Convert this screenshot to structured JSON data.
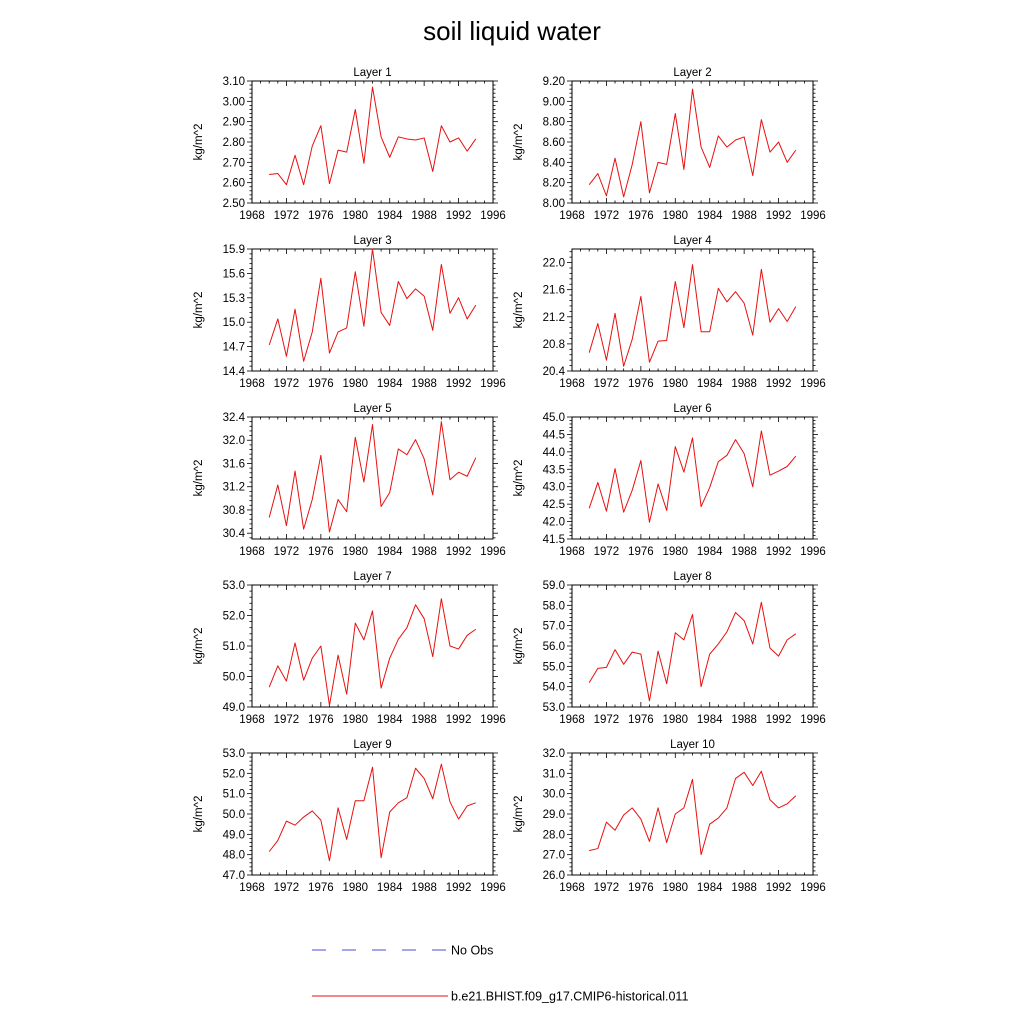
{
  "title": "soil liquid water",
  "legend": {
    "entries": [
      {
        "label": "No Obs",
        "color": "#4b4bd8",
        "style": "dashed"
      },
      {
        "label": "b.e21.BHIST.f09_g17.CMIP6-historical.011",
        "color": "#e81010",
        "style": "solid"
      }
    ]
  },
  "chart_data": [
    {
      "type": "line",
      "title": "Layer 1",
      "ylabel": "kg/m^2",
      "xlim": [
        1968,
        1996
      ],
      "xticks": [
        1968,
        1972,
        1976,
        1980,
        1984,
        1988,
        1992,
        1996
      ],
      "ylim": [
        2.5,
        3.1
      ],
      "yticks": [
        "2.50",
        "2.60",
        "2.70",
        "2.80",
        "2.90",
        "3.00",
        "3.10"
      ],
      "x": [
        1970,
        1971,
        1972,
        1973,
        1974,
        1975,
        1976,
        1977,
        1978,
        1979,
        1980,
        1981,
        1982,
        1983,
        1984,
        1985,
        1986,
        1987,
        1988,
        1989,
        1990,
        1991,
        1992,
        1993,
        1994
      ],
      "series": [
        {
          "name": "b.e21.BHIST.f09_g17.CMIP6-historical.011",
          "values": [
            2.64,
            2.645,
            2.59,
            2.735,
            2.59,
            2.78,
            2.88,
            2.595,
            2.76,
            2.75,
            2.96,
            2.695,
            3.07,
            2.825,
            2.725,
            2.825,
            2.815,
            2.81,
            2.82,
            2.655,
            2.88,
            2.8,
            2.82,
            2.755,
            2.815
          ]
        }
      ]
    },
    {
      "type": "line",
      "title": "Layer 2",
      "ylabel": "kg/m^2",
      "xlim": [
        1968,
        1996
      ],
      "xticks": [
        1968,
        1972,
        1976,
        1980,
        1984,
        1988,
        1992,
        1996
      ],
      "ylim": [
        8.0,
        9.2
      ],
      "yticks": [
        "8.00",
        "8.20",
        "8.40",
        "8.60",
        "8.80",
        "9.00",
        "9.20"
      ],
      "x": [
        1970,
        1971,
        1972,
        1973,
        1974,
        1975,
        1976,
        1977,
        1978,
        1979,
        1980,
        1981,
        1982,
        1983,
        1984,
        1985,
        1986,
        1987,
        1988,
        1989,
        1990,
        1991,
        1992,
        1993,
        1994
      ],
      "series": [
        {
          "name": "b.e21.BHIST.f09_g17.CMIP6-historical.011",
          "values": [
            8.18,
            8.29,
            8.07,
            8.44,
            8.06,
            8.38,
            8.8,
            8.1,
            8.4,
            8.38,
            8.88,
            8.33,
            9.12,
            8.55,
            8.35,
            8.66,
            8.55,
            8.62,
            8.65,
            8.27,
            8.82,
            8.5,
            8.6,
            8.4,
            8.52
          ]
        }
      ]
    },
    {
      "type": "line",
      "title": "Layer 3",
      "ylabel": "kg/m^2",
      "xlim": [
        1968,
        1996
      ],
      "xticks": [
        1968,
        1972,
        1976,
        1980,
        1984,
        1988,
        1992,
        1996
      ],
      "ylim": [
        14.4,
        15.9
      ],
      "yticks": [
        "14.4",
        "14.7",
        "15.0",
        "15.3",
        "15.6",
        "15.9"
      ],
      "x": [
        1970,
        1971,
        1972,
        1973,
        1974,
        1975,
        1976,
        1977,
        1978,
        1979,
        1980,
        1981,
        1982,
        1983,
        1984,
        1985,
        1986,
        1987,
        1988,
        1989,
        1990,
        1991,
        1992,
        1993,
        1994
      ],
      "series": [
        {
          "name": "b.e21.BHIST.f09_g17.CMIP6-historical.011",
          "values": [
            14.72,
            15.04,
            14.58,
            15.16,
            14.52,
            14.88,
            15.54,
            14.62,
            14.88,
            14.93,
            15.62,
            14.95,
            15.9,
            15.12,
            14.96,
            15.5,
            15.29,
            15.41,
            15.32,
            14.9,
            15.71,
            15.11,
            15.3,
            15.04,
            15.21
          ]
        }
      ]
    },
    {
      "type": "line",
      "title": "Layer 4",
      "ylabel": "kg/m^2",
      "xlim": [
        1968,
        1996
      ],
      "xticks": [
        1968,
        1972,
        1976,
        1980,
        1984,
        1988,
        1992,
        1996
      ],
      "ylim": [
        20.4,
        22.2
      ],
      "yticks": [
        "20.4",
        "20.8",
        "21.2",
        "21.6",
        "22.0"
      ],
      "x": [
        1970,
        1971,
        1972,
        1973,
        1974,
        1975,
        1976,
        1977,
        1978,
        1979,
        1980,
        1981,
        1982,
        1983,
        1984,
        1985,
        1986,
        1987,
        1988,
        1989,
        1990,
        1991,
        1992,
        1993,
        1994
      ],
      "series": [
        {
          "name": "b.e21.BHIST.f09_g17.CMIP6-historical.011",
          "values": [
            20.67,
            21.1,
            20.56,
            21.25,
            20.47,
            20.87,
            21.5,
            20.53,
            20.84,
            20.85,
            21.72,
            21.04,
            21.97,
            20.98,
            20.98,
            21.62,
            21.42,
            21.57,
            21.4,
            20.93,
            21.9,
            21.12,
            21.32,
            21.13,
            21.35
          ]
        }
      ]
    },
    {
      "type": "line",
      "title": "Layer 5",
      "ylabel": "kg/m^2",
      "xlim": [
        1968,
        1996
      ],
      "xticks": [
        1968,
        1972,
        1976,
        1980,
        1984,
        1988,
        1992,
        1996
      ],
      "ylim": [
        30.3,
        32.4
      ],
      "yticks": [
        "30.4",
        "30.8",
        "31.2",
        "31.6",
        "32.0",
        "32.4"
      ],
      "x": [
        1970,
        1971,
        1972,
        1973,
        1974,
        1975,
        1976,
        1977,
        1978,
        1979,
        1980,
        1981,
        1982,
        1983,
        1984,
        1985,
        1986,
        1987,
        1988,
        1989,
        1990,
        1991,
        1992,
        1993,
        1994
      ],
      "series": [
        {
          "name": "b.e21.BHIST.f09_g17.CMIP6-historical.011",
          "values": [
            30.67,
            31.23,
            30.53,
            31.47,
            30.47,
            30.98,
            31.74,
            30.42,
            30.98,
            30.77,
            32.05,
            31.28,
            32.27,
            30.86,
            31.1,
            31.85,
            31.75,
            32.01,
            31.68,
            31.06,
            32.32,
            31.32,
            31.45,
            31.38,
            31.7
          ]
        }
      ]
    },
    {
      "type": "line",
      "title": "Layer 6",
      "ylabel": "kg/m^2",
      "xlim": [
        1968,
        1996
      ],
      "xticks": [
        1968,
        1972,
        1976,
        1980,
        1984,
        1988,
        1992,
        1996
      ],
      "ylim": [
        41.5,
        45.0
      ],
      "yticks": [
        "41.5",
        "42.0",
        "42.5",
        "43.0",
        "43.5",
        "44.0",
        "44.5",
        "45.0"
      ],
      "x": [
        1970,
        1971,
        1972,
        1973,
        1974,
        1975,
        1976,
        1977,
        1978,
        1979,
        1980,
        1981,
        1982,
        1983,
        1984,
        1985,
        1986,
        1987,
        1988,
        1989,
        1990,
        1991,
        1992,
        1993,
        1994
      ],
      "series": [
        {
          "name": "b.e21.BHIST.f09_g17.CMIP6-historical.011",
          "values": [
            42.38,
            43.12,
            42.3,
            43.52,
            42.27,
            42.9,
            43.75,
            41.98,
            43.08,
            42.32,
            44.15,
            43.42,
            44.4,
            42.43,
            42.98,
            43.72,
            43.9,
            44.35,
            43.95,
            43.0,
            44.6,
            43.33,
            43.45,
            43.58,
            43.88
          ]
        }
      ]
    },
    {
      "type": "line",
      "title": "Layer 7",
      "ylabel": "kg/m^2",
      "xlim": [
        1968,
        1996
      ],
      "xticks": [
        1968,
        1972,
        1976,
        1980,
        1984,
        1988,
        1992,
        1996
      ],
      "ylim": [
        49.0,
        53.0
      ],
      "yticks": [
        "49.0",
        "50.0",
        "51.0",
        "52.0",
        "53.0"
      ],
      "x": [
        1970,
        1971,
        1972,
        1973,
        1974,
        1975,
        1976,
        1977,
        1978,
        1979,
        1980,
        1981,
        1982,
        1983,
        1984,
        1985,
        1986,
        1987,
        1988,
        1989,
        1990,
        1991,
        1992,
        1993,
        1994
      ],
      "series": [
        {
          "name": "b.e21.BHIST.f09_g17.CMIP6-historical.011",
          "values": [
            49.65,
            50.35,
            49.85,
            51.1,
            49.88,
            50.6,
            51.0,
            49.05,
            50.7,
            49.42,
            51.75,
            51.2,
            52.15,
            49.62,
            50.6,
            51.22,
            51.6,
            52.35,
            51.9,
            50.65,
            52.55,
            51.0,
            50.9,
            51.35,
            51.55
          ]
        }
      ]
    },
    {
      "type": "line",
      "title": "Layer 8",
      "ylabel": "kg/m^2",
      "xlim": [
        1968,
        1996
      ],
      "xticks": [
        1968,
        1972,
        1976,
        1980,
        1984,
        1988,
        1992,
        1996
      ],
      "ylim": [
        53.0,
        59.0
      ],
      "yticks": [
        "53.0",
        "54.0",
        "55.0",
        "56.0",
        "57.0",
        "58.0",
        "59.0"
      ],
      "x": [
        1970,
        1971,
        1972,
        1973,
        1974,
        1975,
        1976,
        1977,
        1978,
        1979,
        1980,
        1981,
        1982,
        1983,
        1984,
        1985,
        1986,
        1987,
        1988,
        1989,
        1990,
        1991,
        1992,
        1993,
        1994
      ],
      "series": [
        {
          "name": "b.e21.BHIST.f09_g17.CMIP6-historical.011",
          "values": [
            54.2,
            54.9,
            54.95,
            55.82,
            55.1,
            55.7,
            55.6,
            53.3,
            55.75,
            54.15,
            56.65,
            56.3,
            57.55,
            54.0,
            55.6,
            56.1,
            56.7,
            57.65,
            57.25,
            56.1,
            58.15,
            55.9,
            55.5,
            56.3,
            56.6
          ]
        }
      ]
    },
    {
      "type": "line",
      "title": "Layer 9",
      "ylabel": "kg/m^2",
      "xlim": [
        1968,
        1996
      ],
      "xticks": [
        1968,
        1972,
        1976,
        1980,
        1984,
        1988,
        1992,
        1996
      ],
      "ylim": [
        47.0,
        53.0
      ],
      "yticks": [
        "47.0",
        "48.0",
        "49.0",
        "50.0",
        "51.0",
        "52.0",
        "53.0"
      ],
      "x": [
        1970,
        1971,
        1972,
        1973,
        1974,
        1975,
        1976,
        1977,
        1978,
        1979,
        1980,
        1981,
        1982,
        1983,
        1984,
        1985,
        1986,
        1987,
        1988,
        1989,
        1990,
        1991,
        1992,
        1993,
        1994
      ],
      "series": [
        {
          "name": "b.e21.BHIST.f09_g17.CMIP6-historical.011",
          "values": [
            48.15,
            48.7,
            49.65,
            49.45,
            49.85,
            50.15,
            49.7,
            47.7,
            50.3,
            48.75,
            50.65,
            50.65,
            52.3,
            47.85,
            50.1,
            50.55,
            50.8,
            52.25,
            51.75,
            50.75,
            52.45,
            50.6,
            49.75,
            50.4,
            50.55
          ]
        }
      ]
    },
    {
      "type": "line",
      "title": "Layer 10",
      "ylabel": "kg/m^2",
      "xlim": [
        1968,
        1996
      ],
      "xticks": [
        1968,
        1972,
        1976,
        1980,
        1984,
        1988,
        1992,
        1996
      ],
      "ylim": [
        26.0,
        32.0
      ],
      "yticks": [
        "26.0",
        "27.0",
        "28.0",
        "29.0",
        "30.0",
        "31.0",
        "32.0"
      ],
      "x": [
        1970,
        1971,
        1972,
        1973,
        1974,
        1975,
        1976,
        1977,
        1978,
        1979,
        1980,
        1981,
        1982,
        1983,
        1984,
        1985,
        1986,
        1987,
        1988,
        1989,
        1990,
        1991,
        1992,
        1993,
        1994
      ],
      "series": [
        {
          "name": "b.e21.BHIST.f09_g17.CMIP6-historical.011",
          "values": [
            27.2,
            27.3,
            28.6,
            28.2,
            28.95,
            29.3,
            28.75,
            27.65,
            29.3,
            27.6,
            29.0,
            29.3,
            30.7,
            27.0,
            28.5,
            28.8,
            29.3,
            30.75,
            31.05,
            30.4,
            31.1,
            29.7,
            29.3,
            29.5,
            29.9
          ]
        }
      ]
    }
  ]
}
